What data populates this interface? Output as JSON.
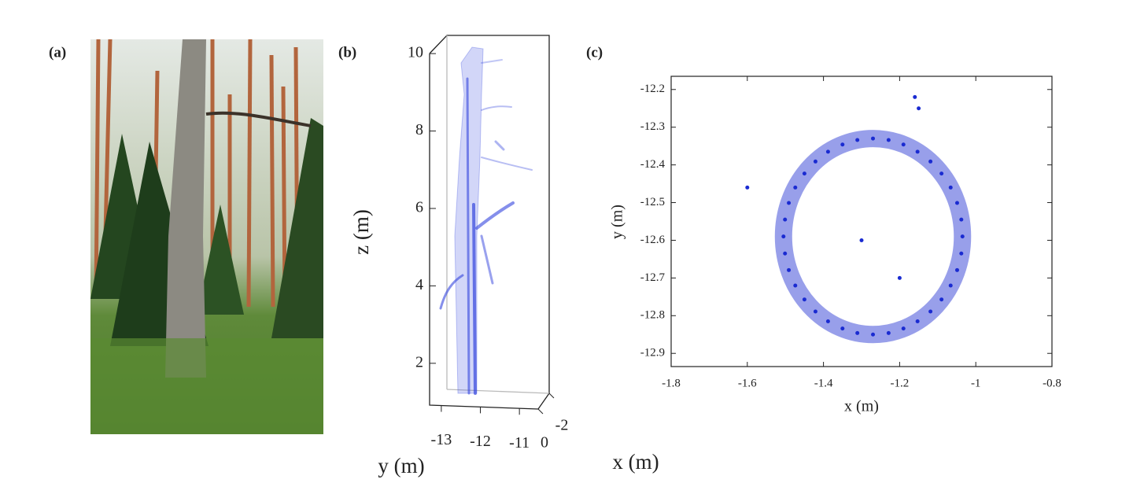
{
  "photo": {
    "panel": "(a)"
  },
  "chart_data": [
    {
      "type": "point-cloud-3d",
      "panel": "(b)",
      "zlabel": "z (m)",
      "ylabel": "y (m)",
      "xlabel": "x (m)",
      "zlim": [
        0.92,
        10.47
      ],
      "zticks": [
        2,
        4,
        6,
        8,
        10
      ],
      "ylim": [
        -13.3,
        -10.6
      ],
      "yticks": [
        -13,
        -12,
        -11
      ],
      "xlim": [
        0,
        -2
      ],
      "xticks": [
        0,
        -2
      ]
    },
    {
      "type": "scatter",
      "panel": "(c)",
      "color": "#1a2bd1",
      "xlabel": "x (m)",
      "ylabel": "y (m)",
      "xlim": [
        -1.8,
        -0.8
      ],
      "xticks": [
        -1.8,
        -1.6,
        -1.4,
        -1.2,
        -1,
        -0.8
      ],
      "ylim": [
        -12.935,
        -12.165
      ],
      "yticks": [
        -12.2,
        -12.3,
        -12.4,
        -12.5,
        -12.6,
        -12.7,
        -12.8,
        -12.9
      ],
      "x": [
        -1.035,
        -1.038,
        -1.049,
        -1.066,
        -1.09,
        -1.119,
        -1.153,
        -1.19,
        -1.229,
        -1.27,
        -1.311,
        -1.35,
        -1.388,
        -1.421,
        -1.45,
        -1.474,
        -1.491,
        -1.501,
        -1.505,
        -1.501,
        -1.491,
        -1.474,
        -1.45,
        -1.421,
        -1.388,
        -1.35,
        -1.311,
        -1.27,
        -1.229,
        -1.19,
        -1.153,
        -1.119,
        -1.09,
        -1.066,
        -1.049,
        -1.038,
        -1.16,
        -1.15,
        -1.6,
        -1.3,
        -1.2
      ],
      "y": [
        -12.59,
        -12.545,
        -12.501,
        -12.46,
        -12.423,
        -12.391,
        -12.365,
        -12.346,
        -12.334,
        -12.33,
        -12.334,
        -12.346,
        -12.365,
        -12.391,
        -12.423,
        -12.46,
        -12.501,
        -12.545,
        -12.59,
        -12.635,
        -12.679,
        -12.72,
        -12.757,
        -12.789,
        -12.815,
        -12.834,
        -12.846,
        -12.85,
        -12.846,
        -12.834,
        -12.815,
        -12.789,
        -12.757,
        -12.72,
        -12.679,
        -12.635,
        -12.22,
        -12.25,
        -12.46,
        -12.6,
        -12.7
      ]
    }
  ]
}
